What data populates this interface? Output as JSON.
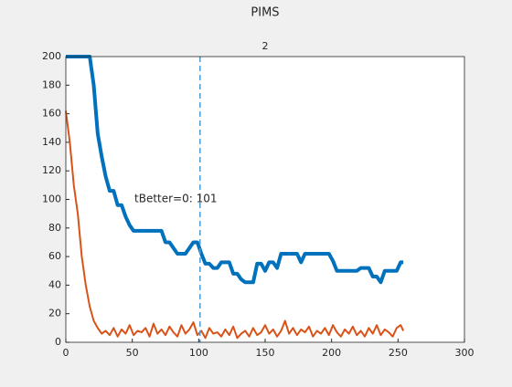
{
  "chart_data": {
    "type": "line",
    "suptitle": "PIMS",
    "title": "2",
    "annotation": "tBetter=0: 101",
    "vline": 101,
    "vline_color": "#4d9bd6",
    "x": [
      0,
      3,
      6,
      9,
      12,
      15,
      18,
      21,
      24,
      27,
      30,
      33,
      36,
      39,
      42,
      45,
      48,
      51,
      54,
      57,
      60,
      63,
      66,
      69,
      72,
      75,
      78,
      81,
      84,
      87,
      90,
      93,
      96,
      99,
      102,
      105,
      108,
      111,
      114,
      117,
      120,
      123,
      126,
      129,
      132,
      135,
      138,
      141,
      144,
      147,
      150,
      153,
      156,
      159,
      162,
      165,
      168,
      171,
      174,
      177,
      180,
      183,
      186,
      189,
      192,
      195,
      198,
      201,
      204,
      207,
      210,
      213,
      216,
      219,
      222,
      225,
      228,
      231,
      234,
      237,
      240,
      243,
      246,
      249,
      252,
      254
    ],
    "series": [
      {
        "color": "#0072bd",
        "width": 4,
        "values": [
          200,
          200,
          200,
          200,
          200,
          200,
          200,
          180,
          146,
          130,
          116,
          106,
          106,
          96,
          96,
          88,
          82,
          78,
          78,
          78,
          78,
          78,
          78,
          78,
          78,
          70,
          70,
          66,
          62,
          62,
          62,
          66,
          70,
          70,
          62,
          55,
          55,
          52,
          52,
          56,
          56,
          56,
          48,
          48,
          44,
          42,
          42,
          42,
          55,
          55,
          50,
          56,
          56,
          52,
          62,
          62,
          62,
          62,
          62,
          56,
          62,
          62,
          62,
          62,
          62,
          62,
          62,
          57,
          50,
          50,
          50,
          50,
          50,
          50,
          52,
          52,
          52,
          46,
          46,
          42,
          50,
          50,
          50,
          50,
          56,
          56
        ]
      },
      {
        "color": "#d95319",
        "width": 2,
        "values": [
          162,
          140,
          110,
          90,
          60,
          40,
          25,
          15,
          10,
          6,
          8,
          5,
          10,
          4,
          9,
          6,
          12,
          5,
          8,
          7,
          10,
          4,
          13,
          6,
          9,
          5,
          11,
          7,
          4,
          12,
          6,
          9,
          14,
          5,
          8,
          3,
          10,
          6,
          7,
          4,
          9,
          5,
          11,
          3,
          6,
          8,
          4,
          10,
          5,
          7,
          12,
          6,
          9,
          4,
          8,
          15,
          6,
          10,
          5,
          9,
          7,
          11,
          4,
          8,
          6,
          10,
          5,
          12,
          7,
          4,
          9,
          6,
          11,
          5,
          8,
          4,
          10,
          6,
          12,
          5,
          9,
          7,
          4,
          10,
          12,
          8
        ]
      }
    ],
    "xlim": [
      0,
      300
    ],
    "xticks": [
      0,
      50,
      100,
      150,
      200,
      250,
      300
    ],
    "ylim": [
      0,
      200
    ],
    "yticks": [
      0,
      20,
      40,
      60,
      80,
      100,
      120,
      140,
      160,
      180,
      200
    ]
  }
}
